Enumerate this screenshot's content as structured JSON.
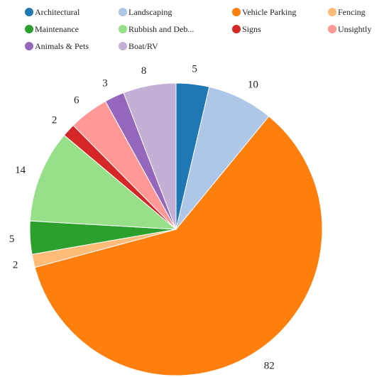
{
  "chart_data": {
    "type": "pie",
    "title": "",
    "legend_position": "top",
    "start": "12 o'clock, clockwise",
    "slices": [
      {
        "label": "Architectural",
        "value": 5,
        "color": "#1f77b4"
      },
      {
        "label": "Landscaping",
        "value": 10,
        "color": "#aec7e8"
      },
      {
        "label": "Vehicle Parking",
        "value": 82,
        "color": "#ff7f0e"
      },
      {
        "label": "Fencing",
        "value": 2,
        "color": "#ffbb78"
      },
      {
        "label": "Maintenance",
        "value": 5,
        "color": "#2ca02c"
      },
      {
        "label": "Rubbish and Deb...",
        "value": 14,
        "color": "#98df8a"
      },
      {
        "label": "Signs",
        "value": 2,
        "color": "#d62728"
      },
      {
        "label": "Unsightly",
        "value": 6,
        "color": "#ff9896"
      },
      {
        "label": "Animals & Pets",
        "value": 3,
        "color": "#9467bd"
      },
      {
        "label": "Boat/RV",
        "value": 8,
        "color": "#c5b0d5"
      }
    ]
  }
}
